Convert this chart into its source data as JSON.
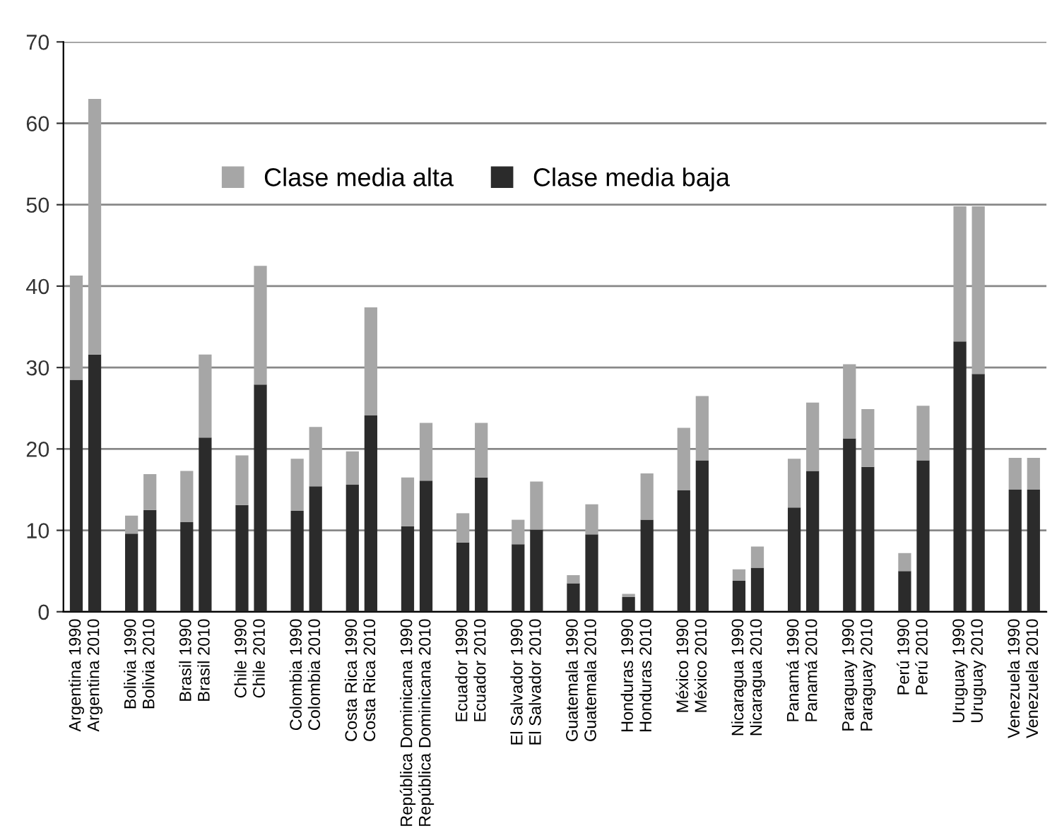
{
  "chart_data": {
    "type": "bar",
    "stacked": true,
    "categories": [
      "Argentina 1990",
      "Argentina 2010",
      null,
      "Bolivia 1990",
      "Bolivia 2010",
      null,
      "Brasil 1990",
      "Brasil 2010",
      null,
      "Chile 1990",
      "Chile 2010",
      null,
      "Colombia 1990",
      "Colombia 2010",
      null,
      "Costa Rica 1990",
      "Costa Rica 2010",
      null,
      "República Dominicana 1990",
      "República Dominicana 2010",
      null,
      "Ecuador 1990",
      "Ecuador 2010",
      null,
      "El Salvador 1990",
      "El Salvador 2010",
      null,
      "Guatemala 1990",
      "Guatemala 2010",
      null,
      "Honduras 1990",
      "Honduras 2010",
      null,
      "México 1990",
      "México 2010",
      null,
      "Nicaragua 1990",
      "Nicaragua 2010",
      null,
      "Panamá 1990",
      "Panamá 2010",
      null,
      "Paraguay 1990",
      "Paraguay 2010",
      null,
      "Perú 1990",
      "Perú 2010",
      null,
      "Uruguay 1990",
      "Uruguay 2010",
      null,
      "Venezuela 1990",
      "Venezuela 2010"
    ],
    "series": [
      {
        "name": "Clase media baja",
        "color": "#2b2b2b",
        "values": [
          28.5,
          31.6,
          null,
          9.6,
          12.5,
          null,
          11.0,
          21.4,
          null,
          13.1,
          27.9,
          null,
          12.4,
          15.4,
          null,
          15.6,
          24.1,
          null,
          10.5,
          16.1,
          null,
          8.5,
          16.5,
          null,
          8.3,
          10.1,
          null,
          3.5,
          9.5,
          null,
          1.8,
          11.3,
          null,
          14.9,
          18.6,
          null,
          3.8,
          5.4,
          null,
          12.8,
          17.3,
          null,
          21.3,
          17.8,
          null,
          5.0,
          18.6,
          null,
          33.2,
          29.2,
          null,
          15.0,
          15.0
        ]
      },
      {
        "name": "Clase media alta",
        "color": "#a6a6a6",
        "values": [
          12.8,
          31.4,
          null,
          2.2,
          4.4,
          null,
          6.3,
          10.2,
          null,
          6.1,
          14.6,
          null,
          6.4,
          7.3,
          null,
          4.1,
          13.3,
          null,
          6.0,
          7.1,
          null,
          3.6,
          6.7,
          null,
          3.0,
          5.9,
          null,
          1.0,
          3.7,
          null,
          0.4,
          5.7,
          null,
          7.7,
          7.9,
          null,
          1.4,
          2.6,
          null,
          6.0,
          8.4,
          null,
          9.1,
          7.1,
          null,
          2.2,
          6.7,
          null,
          16.6,
          20.6,
          null,
          3.9,
          3.9
        ]
      }
    ],
    "ylim": [
      0,
      70
    ],
    "yticks": [
      0,
      10,
      20,
      30,
      40,
      50,
      60,
      70
    ],
    "grid": "y",
    "legend": "top"
  }
}
